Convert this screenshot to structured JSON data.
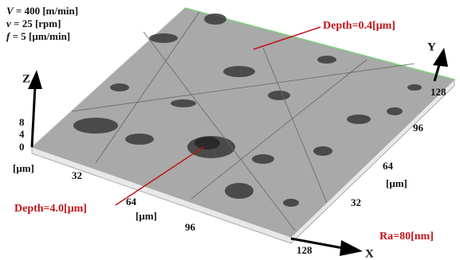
{
  "conditions": [
    {
      "symbol": "V",
      "value": "= 400 [m/min]"
    },
    {
      "symbol": "v",
      "value": "=  25 [rpm]"
    },
    {
      "symbol": "f",
      "value": "=    5 [μm/min]"
    }
  ],
  "annotations": {
    "depth_top": "Depth=0.4[μm]",
    "depth_bottom": "Depth=4.0[μm]",
    "roughness": "Ra=80[nm]"
  },
  "z_axis": {
    "label": "Z",
    "ticks": [
      "8",
      "4",
      "0"
    ],
    "unit": "[μm]"
  },
  "x_axis": {
    "label": "X",
    "ticks": [
      "32",
      "64",
      "96",
      "128"
    ],
    "unit": "[μm]"
  },
  "y_axis": {
    "label": "Y",
    "ticks": [
      "32",
      "64",
      "96",
      "128"
    ],
    "unit": "[μm]"
  }
}
